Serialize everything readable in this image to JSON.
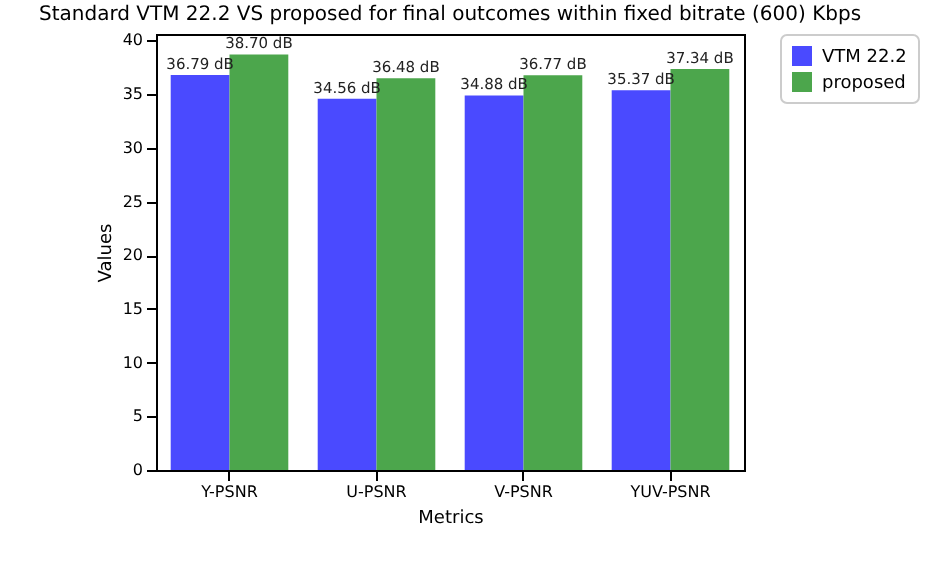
{
  "chart_data": {
    "type": "bar",
    "title": "Standard VTM 22.2 VS proposed for final outcomes within fixed bitrate (600) Kbps",
    "xlabel": "Metrics",
    "ylabel": "Values",
    "categories": [
      "Y-PSNR",
      "U-PSNR",
      "V-PSNR",
      "YUV-PSNR"
    ],
    "series": [
      {
        "name": "VTM 22.2",
        "color": "#4a4aff",
        "values": [
          36.79,
          34.56,
          34.88,
          35.37
        ],
        "value_labels": [
          "36.79 dB",
          "34.56 dB",
          "34.88 dB",
          "35.37 dB"
        ]
      },
      {
        "name": "proposed",
        "color": "#4ca64c",
        "values": [
          38.7,
          36.48,
          36.77,
          37.34
        ],
        "value_labels": [
          "38.70 dB",
          "36.48 dB",
          "36.77 dB",
          "37.34 dB"
        ]
      }
    ],
    "ylim": [
      0,
      40.6
    ],
    "yticks": [
      0,
      5,
      10,
      15,
      20,
      25,
      30,
      35,
      40
    ],
    "grid": false,
    "legend": "top right"
  }
}
